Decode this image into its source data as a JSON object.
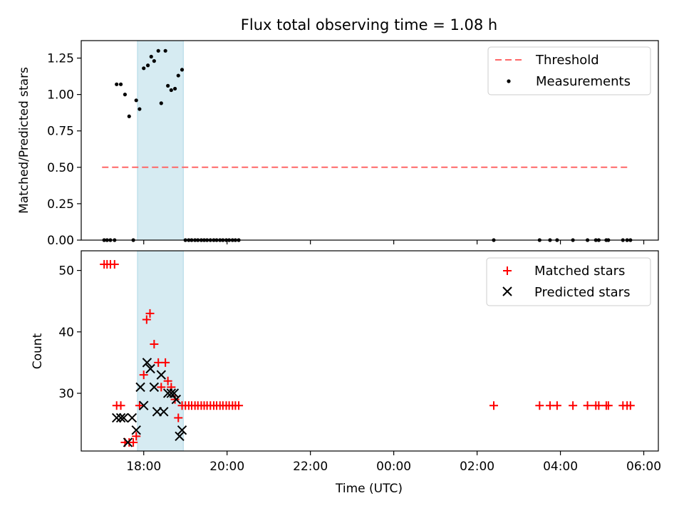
{
  "chart_data": [
    {
      "type": "scatter",
      "title": "Flux total observing time = 1.08 h",
      "xlabel": "",
      "ylabel": "Matched/Predicted stars",
      "xlim": [
        16.5,
        30.35
      ],
      "ylim": [
        0,
        1.37
      ],
      "yticks": [
        0,
        0.25,
        0.5,
        0.75,
        1.0,
        1.25
      ],
      "ytick_labels": [
        "0.00",
        "0.25",
        "0.50",
        "0.75",
        "1.00",
        "1.25"
      ],
      "legend_position": "top-right",
      "shaded_interval": {
        "x0": 17.85,
        "x1": 18.95,
        "color": "#add8e6"
      },
      "threshold": {
        "name": "Threshold",
        "y": 0.5,
        "x0": 17.0,
        "x1": 29.65,
        "color": "#ff6666"
      },
      "series": [
        {
          "name": "Measurements",
          "color": "#000000",
          "points": [
            [
              17.05,
              0
            ],
            [
              17.12,
              0
            ],
            [
              17.2,
              0
            ],
            [
              17.3,
              0
            ],
            [
              17.35,
              1.07
            ],
            [
              17.45,
              1.07
            ],
            [
              17.55,
              1.0
            ],
            [
              17.65,
              0.85
            ],
            [
              17.75,
              0
            ],
            [
              17.82,
              0.96
            ],
            [
              17.9,
              0.9
            ],
            [
              18.0,
              1.18
            ],
            [
              18.1,
              1.2
            ],
            [
              18.18,
              1.26
            ],
            [
              18.25,
              1.23
            ],
            [
              18.35,
              1.3
            ],
            [
              18.42,
              0.94
            ],
            [
              18.52,
              1.3
            ],
            [
              18.58,
              1.06
            ],
            [
              18.66,
              1.03
            ],
            [
              18.75,
              1.04
            ],
            [
              18.83,
              1.13
            ],
            [
              18.92,
              1.17
            ],
            [
              19.0,
              0
            ],
            [
              19.08,
              0
            ],
            [
              19.15,
              0
            ],
            [
              19.23,
              0
            ],
            [
              19.3,
              0
            ],
            [
              19.38,
              0
            ],
            [
              19.45,
              0
            ],
            [
              19.52,
              0
            ],
            [
              19.6,
              0
            ],
            [
              19.68,
              0
            ],
            [
              19.75,
              0
            ],
            [
              19.83,
              0
            ],
            [
              19.9,
              0
            ],
            [
              19.98,
              0
            ],
            [
              20.05,
              0
            ],
            [
              20.13,
              0
            ],
            [
              20.2,
              0
            ],
            [
              20.28,
              0
            ],
            [
              26.4,
              0
            ],
            [
              27.5,
              0
            ],
            [
              27.75,
              0
            ],
            [
              27.92,
              0
            ],
            [
              28.3,
              0
            ],
            [
              28.65,
              0
            ],
            [
              28.85,
              0
            ],
            [
              28.92,
              0
            ],
            [
              29.1,
              0
            ],
            [
              29.15,
              0
            ],
            [
              29.5,
              0
            ],
            [
              29.6,
              0
            ],
            [
              29.68,
              0
            ]
          ]
        }
      ]
    },
    {
      "type": "scatter",
      "title": "",
      "xlabel": "Time (UTC)",
      "ylabel": "Count",
      "xlim": [
        16.5,
        30.35
      ],
      "ylim": [
        20.6,
        53.2
      ],
      "xticks": [
        18,
        20,
        22,
        24,
        26,
        28,
        30
      ],
      "xtick_labels": [
        "18:00",
        "20:00",
        "22:00",
        "00:00",
        "02:00",
        "04:00",
        "06:00"
      ],
      "yticks": [
        30,
        40,
        50
      ],
      "ytick_labels": [
        "30",
        "40",
        "50"
      ],
      "legend_position": "top-right",
      "shaded_interval": {
        "x0": 17.85,
        "x1": 18.95,
        "color": "#add8e6"
      },
      "series": [
        {
          "name": "Matched stars",
          "marker": "plus",
          "color": "#ff0000",
          "points": [
            [
              17.05,
              51
            ],
            [
              17.12,
              51
            ],
            [
              17.2,
              51
            ],
            [
              17.3,
              51
            ],
            [
              17.35,
              28
            ],
            [
              17.45,
              28
            ],
            [
              17.55,
              22
            ],
            [
              17.65,
              22
            ],
            [
              17.75,
              22
            ],
            [
              17.82,
              23
            ],
            [
              17.9,
              28
            ],
            [
              18.0,
              33
            ],
            [
              18.07,
              42
            ],
            [
              18.15,
              43
            ],
            [
              18.25,
              38
            ],
            [
              18.35,
              35
            ],
            [
              18.42,
              31
            ],
            [
              18.52,
              35
            ],
            [
              18.58,
              32
            ],
            [
              18.66,
              31
            ],
            [
              18.75,
              29
            ],
            [
              18.83,
              26
            ],
            [
              18.92,
              28
            ],
            [
              19.0,
              28
            ],
            [
              19.08,
              28
            ],
            [
              19.15,
              28
            ],
            [
              19.23,
              28
            ],
            [
              19.3,
              28
            ],
            [
              19.38,
              28
            ],
            [
              19.45,
              28
            ],
            [
              19.52,
              28
            ],
            [
              19.6,
              28
            ],
            [
              19.68,
              28
            ],
            [
              19.75,
              28
            ],
            [
              19.83,
              28
            ],
            [
              19.9,
              28
            ],
            [
              19.98,
              28
            ],
            [
              20.05,
              28
            ],
            [
              20.13,
              28
            ],
            [
              20.2,
              28
            ],
            [
              20.28,
              28
            ],
            [
              26.4,
              28
            ],
            [
              27.5,
              28
            ],
            [
              27.75,
              28
            ],
            [
              27.92,
              28
            ],
            [
              28.3,
              28
            ],
            [
              28.65,
              28
            ],
            [
              28.85,
              28
            ],
            [
              28.92,
              28
            ],
            [
              29.1,
              28
            ],
            [
              29.15,
              28
            ],
            [
              29.5,
              28
            ],
            [
              29.6,
              28
            ],
            [
              29.68,
              28
            ]
          ]
        },
        {
          "name": "Predicted stars",
          "marker": "x",
          "color": "#000000",
          "points": [
            [
              17.35,
              26
            ],
            [
              17.45,
              26
            ],
            [
              17.52,
              26
            ],
            [
              17.62,
              22
            ],
            [
              17.72,
              26
            ],
            [
              17.82,
              24
            ],
            [
              17.92,
              31
            ],
            [
              18.0,
              28
            ],
            [
              18.08,
              35
            ],
            [
              18.16,
              34
            ],
            [
              18.25,
              31
            ],
            [
              18.32,
              27
            ],
            [
              18.42,
              33
            ],
            [
              18.48,
              27
            ],
            [
              18.58,
              30
            ],
            [
              18.66,
              30
            ],
            [
              18.73,
              30
            ],
            [
              18.78,
              29
            ],
            [
              18.86,
              23
            ],
            [
              18.92,
              24
            ]
          ]
        }
      ]
    }
  ]
}
